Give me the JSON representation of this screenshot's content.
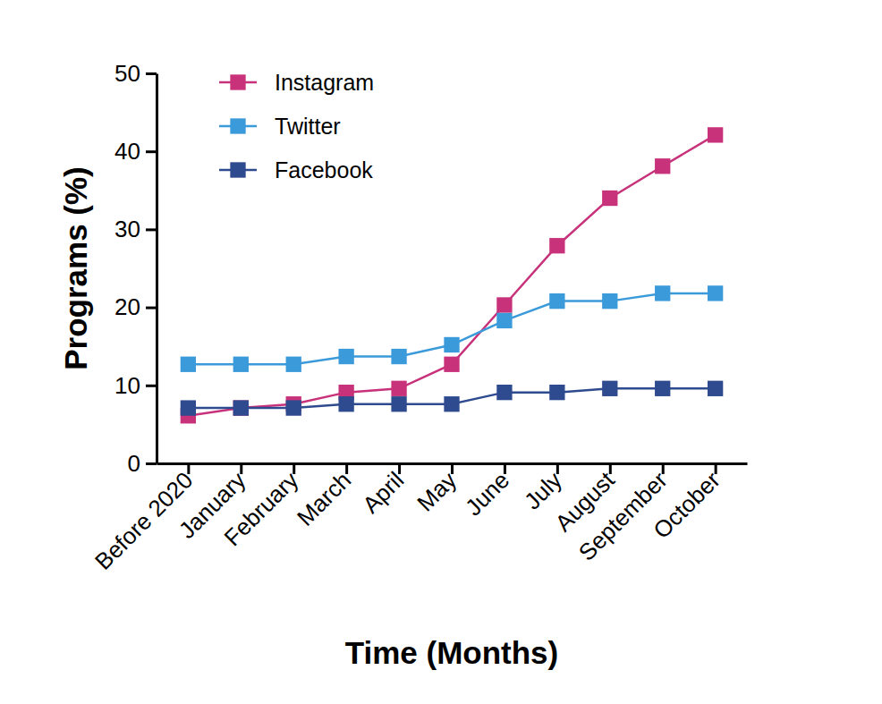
{
  "chart_data": {
    "type": "line",
    "x_label": "Time (Months)",
    "y_label": "Programs (%)",
    "categories": [
      "Before 2020",
      "January",
      "February",
      "March",
      "April",
      "May",
      "June",
      "July",
      "August",
      "September",
      "October"
    ],
    "series": [
      {
        "name": "Instagram",
        "color": "#c8327a",
        "marker": "square",
        "values": [
          6.1,
          7.1,
          7.6,
          9.1,
          9.6,
          12.7,
          20.3,
          27.9,
          34.0,
          38.1,
          42.1
        ]
      },
      {
        "name": "Twitter",
        "color": "#3b9ad9",
        "marker": "square",
        "values": [
          12.7,
          12.7,
          12.7,
          13.7,
          13.7,
          15.2,
          18.3,
          20.8,
          20.8,
          21.8,
          21.8
        ]
      },
      {
        "name": "Facebook",
        "color": "#2e4b8f",
        "marker": "square",
        "values": [
          7.1,
          7.1,
          7.1,
          7.6,
          7.6,
          7.6,
          9.1,
          9.1,
          9.6,
          9.6,
          9.6
        ]
      }
    ],
    "ylim": [
      0,
      50
    ],
    "yticks": [
      0,
      10,
      20,
      30,
      40,
      50
    ],
    "grid": false,
    "legend": "upper left"
  }
}
